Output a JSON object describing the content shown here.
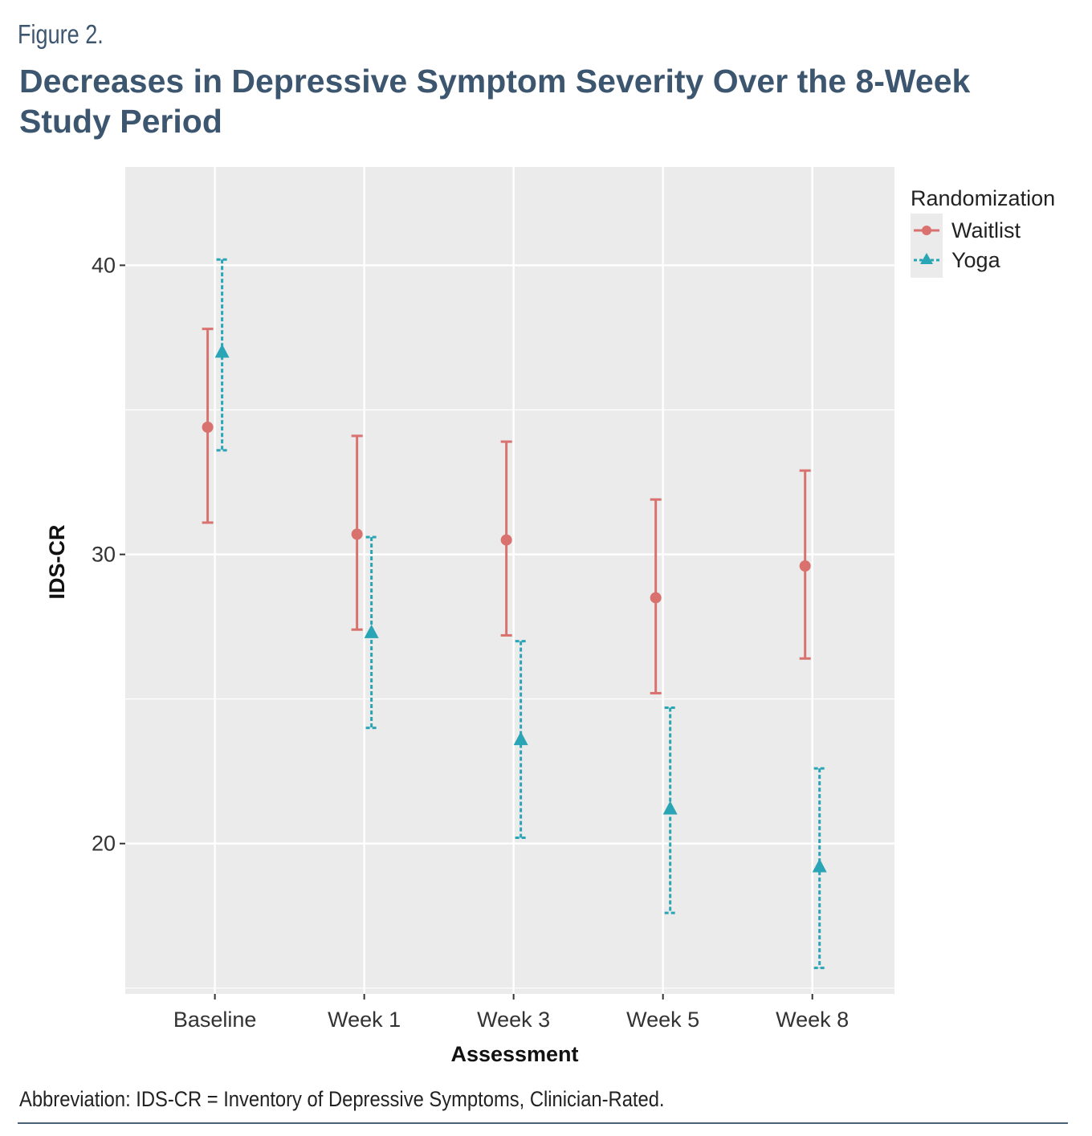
{
  "figure_label": "Figure 2.",
  "figure_title": "Decreases in Depressive Symptom Severity Over the 8-Week Study Period",
  "footnote": "Abbreviation: IDS-CR = Inventory of Depressive Symptoms, Clinician-Rated.",
  "colors": {
    "waitlist": "#d9726f",
    "yoga": "#2aa5b5",
    "panel": "#ebebeb",
    "grid": "#ffffff",
    "title": "#3d5670"
  },
  "chart_data": {
    "type": "scatter",
    "title": "",
    "xlabel": "Assessment",
    "ylabel": "IDS-CR",
    "categories": [
      "Baseline",
      "Week 1",
      "Week 3",
      "Week 5",
      "Week 8"
    ],
    "ylim": [
      14.8,
      43.4
    ],
    "yticks": [
      20,
      30,
      40
    ],
    "grid": true,
    "legend": {
      "title": "Randomization",
      "position": "right-top"
    },
    "series": [
      {
        "name": "Waitlist",
        "marker": "circle",
        "line": "solid",
        "values": [
          34.4,
          30.7,
          30.5,
          28.5,
          29.6
        ],
        "lower": [
          31.1,
          27.4,
          27.2,
          25.2,
          26.4
        ],
        "upper": [
          37.8,
          34.1,
          33.9,
          31.9,
          32.9
        ]
      },
      {
        "name": "Yoga",
        "marker": "triangle",
        "line": "dashed",
        "values": [
          37.0,
          27.3,
          23.6,
          21.2,
          19.2
        ],
        "lower": [
          33.6,
          24.0,
          20.2,
          17.6,
          15.7
        ],
        "upper": [
          40.2,
          30.6,
          27.0,
          24.7,
          22.6
        ]
      }
    ]
  }
}
